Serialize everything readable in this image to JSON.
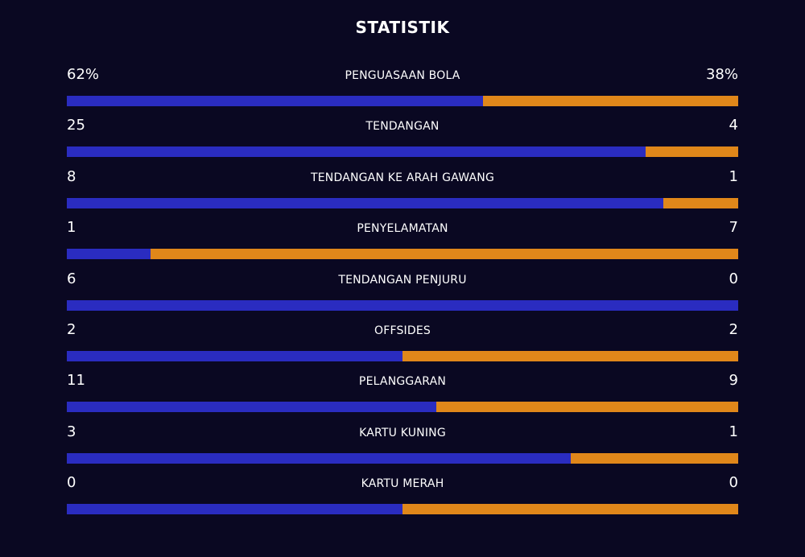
{
  "title": "STATISTIK",
  "colors": {
    "background": "#0a0822",
    "home": "#2a2cc0",
    "away": "#e0871a",
    "text": "#ffffff"
  },
  "stats": [
    {
      "label": "PENGUASAAN BOLA",
      "home": "62%",
      "away": "38%",
      "home_share": 0.62
    },
    {
      "label": "TENDANGAN",
      "home": "25",
      "away": "4",
      "home_share": 0.862
    },
    {
      "label": "TENDANGAN KE ARAH GAWANG",
      "home": "8",
      "away": "1",
      "home_share": 0.889
    },
    {
      "label": "PENYELAMATAN",
      "home": "1",
      "away": "7",
      "home_share": 0.125
    },
    {
      "label": "TENDANGAN PENJURU",
      "home": "6",
      "away": "0",
      "home_share": 1.0
    },
    {
      "label": "OFFSIDES",
      "home": "2",
      "away": "2",
      "home_share": 0.5
    },
    {
      "label": "PELANGGARAN",
      "home": "11",
      "away": "9",
      "home_share": 0.55
    },
    {
      "label": "KARTU KUNING",
      "home": "3",
      "away": "1",
      "home_share": 0.75
    },
    {
      "label": "KARTU MERAH",
      "home": "0",
      "away": "0",
      "home_share": 0.5
    }
  ]
}
